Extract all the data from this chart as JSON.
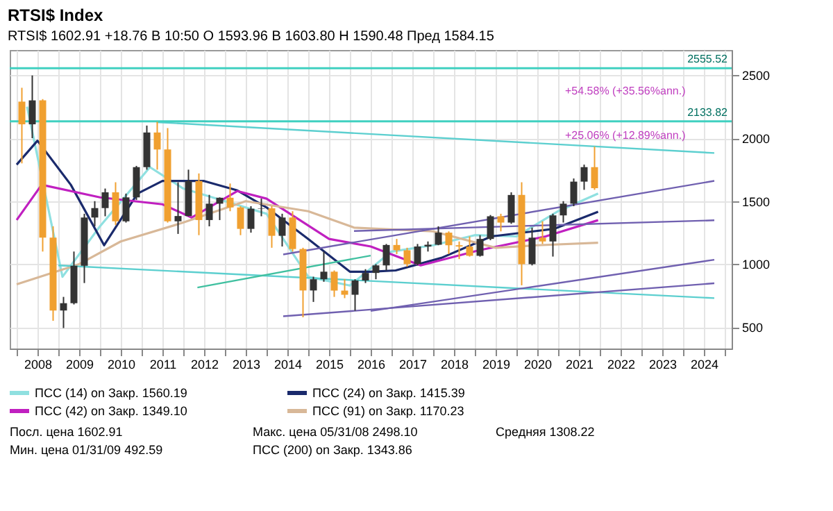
{
  "chart_data": {
    "type": "candlestick",
    "title": "RTSI$ Index",
    "subtitle": "RTSI$ 1602.91 +18.76   В 10:50   О 1593.96   В 1603.80   Н 1590.48   Пред 1584.15",
    "x": [
      2008.125,
      2008.375,
      2008.625,
      2008.875,
      2009.125,
      2009.375,
      2009.625,
      2009.875,
      2010.125,
      2010.375,
      2010.625,
      2010.875,
      2011.125,
      2011.375,
      2011.625,
      2011.875,
      2012.125,
      2012.375,
      2012.625,
      2012.875,
      2013.125,
      2013.375,
      2013.625,
      2013.875,
      2014.125,
      2014.375,
      2014.625,
      2014.875,
      2015.125,
      2015.375,
      2015.625,
      2015.875,
      2016.125,
      2016.375,
      2016.625,
      2016.875,
      2017.125,
      2017.375,
      2017.625,
      2017.875,
      2018.125,
      2018.375,
      2018.625,
      2018.875,
      2019.125,
      2019.375,
      2019.625,
      2019.875,
      2020.125,
      2020.375,
      2020.625,
      2020.875,
      2021.125,
      2021.375,
      2021.625,
      2021.875
    ],
    "ohlc": [
      [
        2290,
        2400,
        1800,
        2110
      ],
      [
        2110,
        2498,
        2000,
        2300
      ],
      [
        2300,
        2310,
        1100,
        1210
      ],
      [
        1210,
        1300,
        550,
        632
      ],
      [
        632,
        740,
        493,
        690
      ],
      [
        690,
        1100,
        680,
        987
      ],
      [
        987,
        1400,
        850,
        1370
      ],
      [
        1370,
        1500,
        1300,
        1445
      ],
      [
        1445,
        1600,
        1380,
        1570
      ],
      [
        1570,
        1650,
        1310,
        1340
      ],
      [
        1340,
        1560,
        1330,
        1530
      ],
      [
        1530,
        1780,
        1510,
        1770
      ],
      [
        1770,
        2100,
        1750,
        2045
      ],
      [
        2045,
        2130,
        1750,
        1910
      ],
      [
        1910,
        2080,
        1330,
        1340
      ],
      [
        1340,
        1650,
        1240,
        1382
      ],
      [
        1382,
        1750,
        1380,
        1660
      ],
      [
        1660,
        1720,
        1230,
        1350
      ],
      [
        1350,
        1550,
        1300,
        1480
      ],
      [
        1480,
        1530,
        1350,
        1527
      ],
      [
        1527,
        1640,
        1420,
        1450
      ],
      [
        1450,
        1460,
        1230,
        1280
      ],
      [
        1280,
        1460,
        1250,
        1440
      ],
      [
        1440,
        1520,
        1380,
        1443
      ],
      [
        1443,
        1460,
        1130,
        1225
      ],
      [
        1225,
        1400,
        1140,
        1370
      ],
      [
        1370,
        1420,
        1100,
        1120
      ],
      [
        1120,
        1130,
        578,
        791
      ],
      [
        791,
        900,
        700,
        880
      ],
      [
        880,
        1100,
        860,
        940
      ],
      [
        940,
        950,
        740,
        790
      ],
      [
        790,
        880,
        730,
        757
      ],
      [
        757,
        880,
        630,
        870
      ],
      [
        870,
        960,
        850,
        930
      ],
      [
        930,
        1000,
        880,
        990
      ],
      [
        990,
        1160,
        950,
        1152
      ],
      [
        1152,
        1200,
        1080,
        1110
      ],
      [
        1110,
        1130,
        980,
        1000
      ],
      [
        1000,
        1160,
        990,
        1140
      ],
      [
        1140,
        1180,
        1100,
        1154
      ],
      [
        1154,
        1300,
        1150,
        1250
      ],
      [
        1250,
        1260,
        1080,
        1150
      ],
      [
        1150,
        1180,
        1040,
        1140
      ],
      [
        1140,
        1220,
        1060,
        1066
      ],
      [
        1066,
        1230,
        1060,
        1200
      ],
      [
        1200,
        1390,
        1190,
        1380
      ],
      [
        1380,
        1400,
        1260,
        1330
      ],
      [
        1330,
        1570,
        1320,
        1549
      ],
      [
        1549,
        1650,
        832,
        1000
      ],
      [
        1000,
        1290,
        990,
        1210
      ],
      [
        1210,
        1340,
        1160,
        1180
      ],
      [
        1180,
        1400,
        1060,
        1387
      ],
      [
        1387,
        1500,
        1330,
        1480
      ],
      [
        1480,
        1680,
        1460,
        1655
      ],
      [
        1655,
        1790,
        1590,
        1770
      ],
      [
        1770,
        1933,
        1590,
        1603
      ]
    ],
    "colors": [
      "#f0a030",
      "#333333",
      "#f0a030",
      "#f0a030",
      "#333333",
      "#333333",
      "#333333",
      "#333333",
      "#333333",
      "#f0a030",
      "#333333",
      "#333333",
      "#333333",
      "#f0a030",
      "#f0a030",
      "#333333",
      "#333333",
      "#f0a030",
      "#333333",
      "#333333",
      "#f0a030",
      "#f0a030",
      "#333333",
      "#333333",
      "#f0a030",
      "#333333",
      "#f0a030",
      "#f0a030",
      "#333333",
      "#333333",
      "#f0a030",
      "#f0a030",
      "#333333",
      "#333333",
      "#333333",
      "#333333",
      "#f0a030",
      "#f0a030",
      "#333333",
      "#333333",
      "#333333",
      "#f0a030",
      "#f0a030",
      "#f0a030",
      "#333333",
      "#333333",
      "#f0a030",
      "#333333",
      "#f0a030",
      "#333333",
      "#f0a030",
      "#333333",
      "#333333",
      "#333333",
      "#333333",
      "#f0a030"
    ],
    "series": [
      {
        "type": "line",
        "name": "ПСС (14) on Закр. 1560.19",
        "color": "#8fe0e0",
        "x": [
          2008.25,
          2009.1,
          2010.0,
          2011.2,
          2012.0,
          2013.0,
          2014.0,
          2015.0,
          2016.0,
          2017.0,
          2018.0,
          2019.0,
          2020.0,
          2021.0,
          2021.96
        ],
        "values": [
          2250,
          900,
          1300,
          1770,
          1600,
          1500,
          1400,
          900,
          830,
          1100,
          1150,
          1230,
          1220,
          1420,
          1560.19
        ]
      },
      {
        "type": "line",
        "name": "ПСС (24) on Закр. 1415.39",
        "color": "#1a2a6c",
        "x": [
          2008.0,
          2008.5,
          2009.3,
          2010.1,
          2010.9,
          2011.5,
          2012.5,
          2013.3,
          2014.0,
          2015.0,
          2016.0,
          2016.5,
          2017.1,
          2018.2,
          2019.4,
          2020.9,
          2021.96
        ],
        "values": [
          1790,
          1980,
          1630,
          1150,
          1560,
          1660,
          1660,
          1585,
          1450,
          1200,
          940,
          940,
          950,
          1050,
          1220,
          1280,
          1415.39
        ]
      },
      {
        "type": "line",
        "name": "ПСС (42) on Закр. 1349.10",
        "color": "#c020c0",
        "x": [
          2008.0,
          2008.6,
          2010.0,
          2011.5,
          2012.2,
          2013.3,
          2014.0,
          2015.5,
          2016.5,
          2017.7,
          2019.1,
          2020.7,
          2021.96
        ],
        "values": [
          1350,
          1630,
          1530,
          1475,
          1370,
          1580,
          1520,
          1200,
          1140,
          990,
          1110,
          1220,
          1349.1
        ]
      },
      {
        "type": "line",
        "name": "ПСС (91) on Закр. 1170.23",
        "color": "#d8b898",
        "x": [
          2008.0,
          2009.5,
          2010.5,
          2012.0,
          2013.5,
          2015.0,
          2016.1,
          2018.0,
          2019.5,
          2020.5,
          2021.96
        ],
        "values": [
          840,
          1000,
          1180,
          1330,
          1500,
          1420,
          1290,
          1260,
          1130,
          1150,
          1170.23
        ]
      },
      {
        "type": "line",
        "color": "#5ccfcf",
        "x": [
          2011.36,
          2024.75
        ],
        "values": [
          2127,
          1882
        ]
      },
      {
        "type": "line",
        "color": "#5ccfcf",
        "x": [
          2009.0,
          2024.75
        ],
        "values": [
          990,
          730
        ]
      },
      {
        "type": "line",
        "color": "#40c0a0",
        "x": [
          2012.34,
          2016.5
        ],
        "values": [
          814,
          1068
        ]
      },
      {
        "type": "line",
        "color": "#7060b0",
        "x": [
          2014.4,
          2024.75
        ],
        "values": [
          586,
          848
        ]
      },
      {
        "type": "line",
        "color": "#7060b0",
        "x": [
          2014.4,
          2024.75
        ],
        "values": [
          1077,
          1661
        ]
      },
      {
        "type": "line",
        "color": "#7060b0",
        "x": [
          2016.1,
          2024.75
        ],
        "values": [
          1263,
          1348
        ]
      },
      {
        "type": "line",
        "color": "#7060b0",
        "x": [
          2016.5,
          2024.75
        ],
        "values": [
          628,
          1035
        ]
      }
    ],
    "ref_lines": [
      {
        "axis": "y",
        "value": 2555.52,
        "label": "2555.52",
        "color": "#40d0c0"
      },
      {
        "axis": "y",
        "value": 2133.82,
        "label": "2133.82",
        "color": "#40d0c0"
      }
    ],
    "annotations": [
      "+54.58% (+35.56%ann.)",
      "+25.06% (+12.89%ann.)",
      "Посл. цена 1602.91",
      "Макс. цена 05/31/08 2498.10",
      "Средняя 1308.22",
      "Мин. цена 01/31/09 492.59",
      "ПСС (200) on Закр. 1343.86"
    ],
    "xlim": [
      2008,
      2025
    ],
    "ylim": [
      330,
      2700
    ],
    "xticks": [
      {
        "value": 2008,
        "label": null
      },
      {
        "value": 2009,
        "label": null
      },
      {
        "value": 2010,
        "label": null
      },
      {
        "value": 2011,
        "label": null
      },
      {
        "value": 2012,
        "label": null
      },
      {
        "value": 2013,
        "label": null
      },
      {
        "value": 2014,
        "label": null
      },
      {
        "value": 2015,
        "label": null
      },
      {
        "value": 2016,
        "label": null
      },
      {
        "value": 2017,
        "label": null
      },
      {
        "value": 2018,
        "label": null
      },
      {
        "value": 2019,
        "label": null
      },
      {
        "value": 2020,
        "label": null
      },
      {
        "value": 2021,
        "label": null
      },
      {
        "value": 2022,
        "label": null
      },
      {
        "value": 2023,
        "label": null
      },
      {
        "value": 2024,
        "label": null
      },
      {
        "value": 2025,
        "label": null
      },
      {
        "value": 2008.5,
        "label": "2008"
      },
      {
        "value": 2009.5,
        "label": "2009"
      },
      {
        "value": 2010.5,
        "label": "2010"
      },
      {
        "value": 2011.5,
        "label": "2011"
      },
      {
        "value": 2012.5,
        "label": "2012"
      },
      {
        "value": 2013.5,
        "label": "2013"
      },
      {
        "value": 2014.5,
        "label": "2014"
      },
      {
        "value": 2015.5,
        "label": "2015"
      },
      {
        "value": 2016.5,
        "label": "2016"
      },
      {
        "value": 2017.5,
        "label": "2017"
      },
      {
        "value": 2018.5,
        "label": "2018"
      },
      {
        "value": 2019.5,
        "label": "2019"
      },
      {
        "value": 2020.5,
        "label": "2020"
      },
      {
        "value": 2021.5,
        "label": "2021"
      },
      {
        "value": 2022.5,
        "label": "2022"
      },
      {
        "value": 2023.5,
        "label": "2023"
      },
      {
        "value": 2024.5,
        "label": "2024"
      }
    ],
    "yticks": [
      500,
      1000,
      1500,
      2000,
      2500
    ],
    "grid": true,
    "legend": "bottom"
  }
}
